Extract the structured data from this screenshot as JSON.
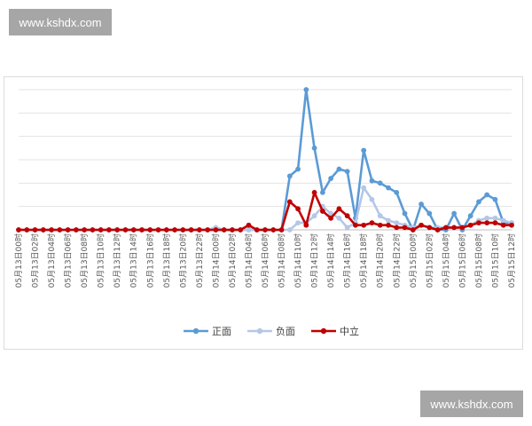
{
  "watermark": {
    "text": "www.kshdx.com"
  },
  "colors": {
    "positive": "#5b9bd5",
    "negative": "#b4c7e7",
    "neutral": "#c00000",
    "grid": "#e3e3e3"
  },
  "chart_data": {
    "type": "line",
    "title": "",
    "xlabel": "",
    "ylabel": "",
    "grid": true,
    "legend_position": "bottom",
    "categories": [
      "05月13日00时",
      "05月13日01时",
      "05月13日02时",
      "05月13日03时",
      "05月13日04时",
      "05月13日05时",
      "05月13日06时",
      "05月13日07时",
      "05月13日08时",
      "05月13日09时",
      "05月13日10时",
      "05月13日11时",
      "05月13日12时",
      "05月13日13时",
      "05月13日14时",
      "05月13日15时",
      "05月13日16时",
      "05月13日17时",
      "05月13日18时",
      "05月13日19时",
      "05月13日20时",
      "05月13日21时",
      "05月13日22时",
      "05月13日23时",
      "05月14日00时",
      "05月14日01时",
      "05月14日02时",
      "05月14日03时",
      "05月14日04时",
      "05月14日05时",
      "05月14日06时",
      "05月14日07时",
      "05月14日08时",
      "05月14日09时",
      "05月14日10时",
      "05月14日11时",
      "05月14日12时",
      "05月14日13时",
      "05月14日14时",
      "05月14日15时",
      "05月14日16时",
      "05月14日17时",
      "05月14日18时",
      "05月14日19时",
      "05月14日20时",
      "05月14日21时",
      "05月14日22时",
      "05月14日23时",
      "05月15日00时",
      "05月15日01时",
      "05月15日02时",
      "05月15日03时",
      "05月15日04时",
      "05月15日05时",
      "05月15日06时",
      "05月15日07时",
      "05月15日08时",
      "05月15日09时",
      "05月15日10时",
      "05月15日11时",
      "05月15日12时"
    ],
    "tick_labels": [
      "05月13日00时",
      "05月13日02时",
      "05月13日04时",
      "05月13日06时",
      "05月13日08时",
      "05月13日10时",
      "05月13日12时",
      "05月13日14时",
      "05月13日16时",
      "05月13日18时",
      "05月13日20时",
      "05月13日22时",
      "05月14日00时",
      "05月14日02时",
      "05月14日04时",
      "05月14日06时",
      "05月14日08时",
      "05月14日10时",
      "05月14日12时",
      "05月14日14时",
      "05月14日16时",
      "05月14日18时",
      "05月14日20时",
      "05月14日22时",
      "05月15日00时",
      "05月15日02时",
      "05月15日04时",
      "05月15日06时",
      "05月15日08时",
      "05月15日10时",
      "05月15日12时"
    ],
    "ylim": [
      0,
      6
    ],
    "series": [
      {
        "name": "正面",
        "color": "#5b9bd5",
        "values": [
          0,
          0,
          0,
          0,
          0,
          0,
          0,
          0,
          0,
          0,
          0,
          0,
          0,
          0,
          0,
          0,
          0,
          0,
          0,
          0,
          0,
          0,
          0,
          0,
          0,
          0,
          0,
          0,
          0,
          0,
          0,
          0,
          0,
          2.3,
          2.6,
          6.0,
          3.5,
          1.6,
          2.2,
          2.6,
          2.5,
          0.5,
          3.4,
          2.1,
          2.0,
          1.8,
          1.6,
          0.7,
          0,
          1.1,
          0.7,
          0,
          0,
          0.7,
          0,
          0.6,
          1.2,
          1.5,
          1.3,
          0.3,
          0.3
        ]
      },
      {
        "name": "负面",
        "color": "#b4c7e7",
        "values": [
          0,
          0,
          0,
          0,
          0,
          0,
          0,
          0,
          0,
          0,
          0,
          0,
          0,
          0,
          0,
          0,
          0,
          0,
          0,
          0,
          0,
          0,
          0,
          0,
          0.1,
          0,
          0,
          0,
          0,
          0,
          0,
          0,
          0,
          0,
          0.3,
          0.3,
          0.6,
          1.0,
          0.7,
          0.5,
          0.1,
          0.3,
          1.8,
          1.3,
          0.6,
          0.4,
          0.3,
          0.2,
          0.1,
          0.2,
          0.1,
          0.1,
          0.1,
          0.1,
          0.1,
          0.2,
          0.4,
          0.5,
          0.5,
          0.4,
          0.3
        ]
      },
      {
        "name": "中立",
        "color": "#c00000",
        "values": [
          0,
          0,
          0,
          0,
          0,
          0,
          0,
          0,
          0,
          0,
          0,
          0,
          0,
          0,
          0,
          0,
          0,
          0,
          0,
          0,
          0,
          0,
          0,
          0,
          0,
          0,
          0,
          0,
          0.2,
          0,
          0,
          0,
          0,
          1.2,
          0.9,
          0.2,
          1.6,
          0.8,
          0.5,
          0.9,
          0.6,
          0.2,
          0.2,
          0.3,
          0.2,
          0.2,
          0.1,
          0.1,
          0,
          0.2,
          0.1,
          0,
          0.1,
          0.1,
          0.1,
          0.2,
          0.3,
          0.3,
          0.3,
          0.2,
          0.2
        ]
      }
    ]
  }
}
